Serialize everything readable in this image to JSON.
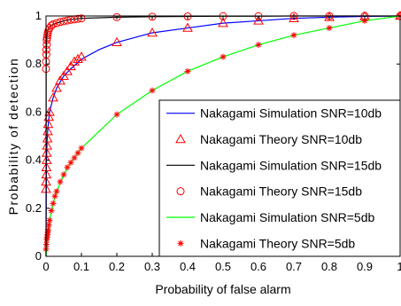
{
  "chart_data": {
    "type": "line",
    "title": "",
    "xlabel": "Probability of false alarm",
    "ylabel": "Probability of detection",
    "xlim": [
      0,
      1
    ],
    "ylim": [
      0,
      1
    ],
    "x_ticks": [
      "0",
      "0.1",
      "0.2",
      "0.3",
      "0.4",
      "0.5",
      "0.6",
      "0.7",
      "0.8",
      "0.9",
      "1"
    ],
    "y_ticks": [
      "0",
      "0.2",
      "0.4",
      "0.6",
      "0.8",
      "1"
    ],
    "grid": false,
    "legend_position": "bottom-right",
    "series": [
      {
        "name": "Nakagami Simulation SNR=10db",
        "style": "line",
        "color": "#0000ff",
        "x": [
          0,
          0.001,
          0.003,
          0.005,
          0.01,
          0.02,
          0.03,
          0.05,
          0.07,
          0.1,
          0.15,
          0.2,
          0.3,
          0.4,
          0.5,
          0.6,
          0.7,
          0.8,
          0.9,
          1.0
        ],
        "y": [
          0,
          0.38,
          0.48,
          0.53,
          0.6,
          0.66,
          0.7,
          0.75,
          0.78,
          0.82,
          0.86,
          0.89,
          0.93,
          0.95,
          0.97,
          0.98,
          0.99,
          0.995,
          0.998,
          1.0
        ]
      },
      {
        "name": "Nakagami Theory SNR=10db",
        "style": "marker",
        "marker": "triangle",
        "color": "#ff0000",
        "x": [
          0.0,
          0.0,
          0.001,
          0.001,
          0.002,
          0.002,
          0.003,
          0.004,
          0.005,
          0.006,
          0.008,
          0.01,
          0.02,
          0.03,
          0.04,
          0.05,
          0.06,
          0.07,
          0.08,
          0.09,
          0.1,
          0.2,
          0.3,
          0.4,
          0.5,
          0.6,
          0.7,
          0.8,
          0.9,
          1.0
        ],
        "y": [
          0.28,
          0.31,
          0.34,
          0.37,
          0.4,
          0.43,
          0.46,
          0.49,
          0.52,
          0.55,
          0.58,
          0.6,
          0.66,
          0.7,
          0.73,
          0.75,
          0.77,
          0.79,
          0.81,
          0.82,
          0.83,
          0.89,
          0.93,
          0.95,
          0.97,
          0.98,
          0.99,
          0.995,
          0.998,
          1.0
        ]
      },
      {
        "name": "Nakagami Simulation SNR=15db",
        "style": "line",
        "color": "#000000",
        "x": [
          0,
          0.0005,
          0.001,
          0.002,
          0.003,
          0.005,
          0.01,
          0.02,
          0.03,
          0.05,
          0.07,
          0.1,
          0.2,
          0.3,
          0.4,
          0.5,
          0.6,
          0.7,
          0.8,
          0.9,
          1.0
        ],
        "y": [
          0,
          0.8,
          0.86,
          0.9,
          0.92,
          0.94,
          0.955,
          0.965,
          0.97,
          0.98,
          0.985,
          0.99,
          0.995,
          0.997,
          0.998,
          0.999,
          0.999,
          1.0,
          1.0,
          1.0,
          1.0
        ]
      },
      {
        "name": "Nakagami Theory SNR=15db",
        "style": "marker",
        "marker": "circle",
        "color": "#ff0000",
        "x": [
          0.0,
          0.0,
          0.001,
          0.001,
          0.002,
          0.002,
          0.003,
          0.004,
          0.005,
          0.007,
          0.01,
          0.015,
          0.02,
          0.03,
          0.04,
          0.05,
          0.06,
          0.07,
          0.08,
          0.09,
          0.1,
          0.2,
          0.3,
          0.4,
          0.5,
          0.6,
          0.7,
          0.8,
          0.9,
          1.0
        ],
        "y": [
          0.78,
          0.81,
          0.84,
          0.86,
          0.88,
          0.9,
          0.91,
          0.92,
          0.93,
          0.94,
          0.95,
          0.96,
          0.965,
          0.97,
          0.975,
          0.978,
          0.981,
          0.984,
          0.986,
          0.988,
          0.99,
          0.995,
          0.997,
          0.998,
          0.999,
          0.999,
          1.0,
          1.0,
          1.0,
          1.0
        ]
      },
      {
        "name": "Nakagami Simulation SNR=5db",
        "style": "line",
        "color": "#00ff00",
        "x": [
          0,
          0.01,
          0.02,
          0.03,
          0.05,
          0.07,
          0.1,
          0.15,
          0.2,
          0.3,
          0.4,
          0.5,
          0.6,
          0.7,
          0.8,
          0.9,
          1.0
        ],
        "y": [
          0,
          0.15,
          0.22,
          0.27,
          0.34,
          0.39,
          0.45,
          0.52,
          0.59,
          0.69,
          0.77,
          0.83,
          0.88,
          0.92,
          0.95,
          0.98,
          1.0
        ]
      },
      {
        "name": "Nakagami Theory SNR=5db",
        "style": "marker",
        "marker": "asterisk",
        "color": "#ff0000",
        "x": [
          0.0,
          0.001,
          0.002,
          0.003,
          0.004,
          0.005,
          0.006,
          0.008,
          0.01,
          0.015,
          0.02,
          0.025,
          0.03,
          0.04,
          0.05,
          0.06,
          0.07,
          0.08,
          0.09,
          0.1,
          0.2,
          0.3,
          0.4,
          0.5,
          0.6,
          0.7,
          0.8,
          0.9,
          1.0
        ],
        "y": [
          0.03,
          0.05,
          0.07,
          0.08,
          0.09,
          0.1,
          0.11,
          0.13,
          0.15,
          0.19,
          0.22,
          0.25,
          0.27,
          0.31,
          0.34,
          0.37,
          0.39,
          0.41,
          0.43,
          0.45,
          0.59,
          0.69,
          0.77,
          0.83,
          0.88,
          0.92,
          0.95,
          0.98,
          1.0
        ]
      }
    ]
  }
}
